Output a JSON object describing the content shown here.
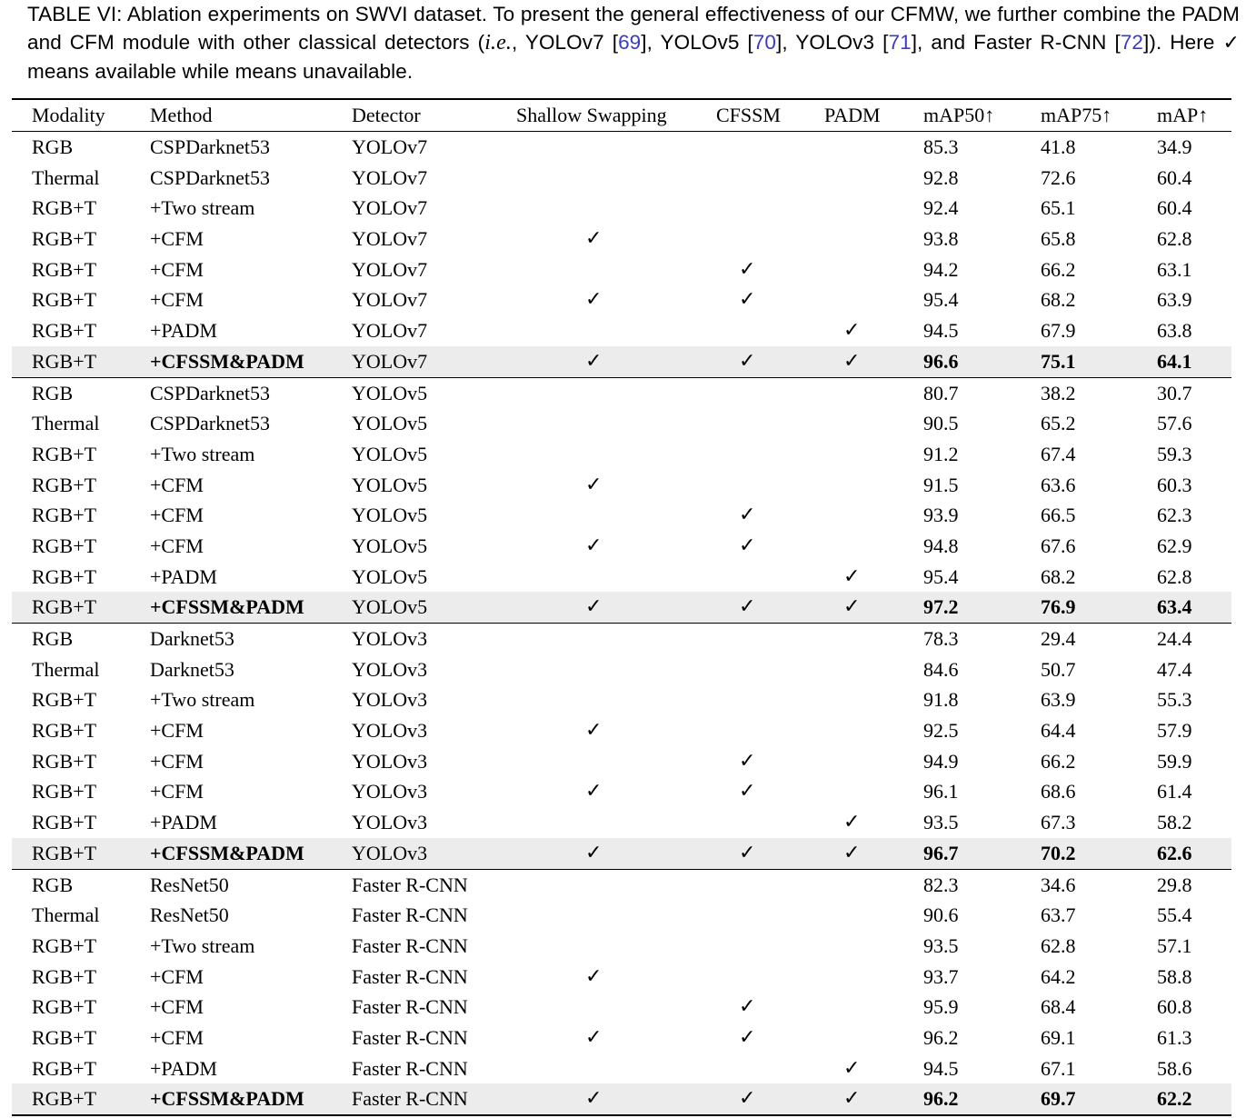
{
  "caption": {
    "p1": "TABLE VI: Ablation experiments on SWVI dataset. To present the general effectiveness of our CFMW, we further combine the PADM and CFM module with other classical detectors (",
    "ie": "i.e.",
    "p2": ", YOLOv7 [",
    "ref69": "69",
    "p3": "], YOLOv5 [",
    "ref70": "70",
    "p4": "], YOLOv3 [",
    "ref71": "71",
    "p5": "], and Faster R-CNN [",
    "ref72": "72",
    "p6": "]). Here ",
    "check": "✓",
    "p7": " means available while  means unavailable."
  },
  "table": {
    "headers": [
      "Modality",
      "Method",
      "Detector",
      "Shallow Swapping",
      "CFSSM",
      "PADM",
      "mAP50↑",
      "mAP75↑",
      "mAP↑"
    ],
    "check_glyph": "✓",
    "rows": [
      {
        "modality": "RGB",
        "method": "CSPDarknet53",
        "detector": "YOLOv7",
        "shallow": false,
        "cfssm": false,
        "padm": false,
        "map50": "85.3",
        "map75": "41.8",
        "map": "34.9"
      },
      {
        "modality": "Thermal",
        "method": "CSPDarknet53",
        "detector": "YOLOv7",
        "shallow": false,
        "cfssm": false,
        "padm": false,
        "map50": "92.8",
        "map75": "72.6",
        "map": "60.4"
      },
      {
        "modality": "RGB+T",
        "method": "+Two stream",
        "detector": "YOLOv7",
        "shallow": false,
        "cfssm": false,
        "padm": false,
        "map50": "92.4",
        "map75": "65.1",
        "map": "60.4"
      },
      {
        "modality": "RGB+T",
        "method": "+CFM",
        "detector": "YOLOv7",
        "shallow": true,
        "cfssm": false,
        "padm": false,
        "map50": "93.8",
        "map75": "65.8",
        "map": "62.8"
      },
      {
        "modality": "RGB+T",
        "method": "+CFM",
        "detector": "YOLOv7",
        "shallow": false,
        "cfssm": true,
        "padm": false,
        "map50": "94.2",
        "map75": "66.2",
        "map": "63.1"
      },
      {
        "modality": "RGB+T",
        "method": "+CFM",
        "detector": "YOLOv7",
        "shallow": true,
        "cfssm": true,
        "padm": false,
        "map50": "95.4",
        "map75": "68.2",
        "map": "63.9"
      },
      {
        "modality": "RGB+T",
        "method": "+PADM",
        "detector": "YOLOv7",
        "shallow": false,
        "cfssm": false,
        "padm": true,
        "map50": "94.5",
        "map75": "67.9",
        "map": "63.8"
      },
      {
        "modality": "RGB+T",
        "method": "+CFSSM&PADM",
        "detector": "YOLOv7",
        "shallow": true,
        "cfssm": true,
        "padm": true,
        "map50": "96.6",
        "map75": "75.1",
        "map": "64.1",
        "highlight": true,
        "group_end": true
      },
      {
        "modality": "RGB",
        "method": "CSPDarknet53",
        "detector": "YOLOv5",
        "shallow": false,
        "cfssm": false,
        "padm": false,
        "map50": "80.7",
        "map75": "38.2",
        "map": "30.7"
      },
      {
        "modality": "Thermal",
        "method": "CSPDarknet53",
        "detector": "YOLOv5",
        "shallow": false,
        "cfssm": false,
        "padm": false,
        "map50": "90.5",
        "map75": "65.2",
        "map": "57.6"
      },
      {
        "modality": "RGB+T",
        "method": "+Two stream",
        "detector": "YOLOv5",
        "shallow": false,
        "cfssm": false,
        "padm": false,
        "map50": "91.2",
        "map75": "67.4",
        "map": "59.3"
      },
      {
        "modality": "RGB+T",
        "method": "+CFM",
        "detector": "YOLOv5",
        "shallow": true,
        "cfssm": false,
        "padm": false,
        "map50": "91.5",
        "map75": "63.6",
        "map": "60.3"
      },
      {
        "modality": "RGB+T",
        "method": "+CFM",
        "detector": "YOLOv5",
        "shallow": false,
        "cfssm": true,
        "padm": false,
        "map50": "93.9",
        "map75": "66.5",
        "map": "62.3"
      },
      {
        "modality": "RGB+T",
        "method": "+CFM",
        "detector": "YOLOv5",
        "shallow": true,
        "cfssm": true,
        "padm": false,
        "map50": "94.8",
        "map75": "67.6",
        "map": "62.9"
      },
      {
        "modality": "RGB+T",
        "method": "+PADM",
        "detector": "YOLOv5",
        "shallow": false,
        "cfssm": false,
        "padm": true,
        "map50": "95.4",
        "map75": "68.2",
        "map": "62.8"
      },
      {
        "modality": "RGB+T",
        "method": "+CFSSM&PADM",
        "detector": "YOLOv5",
        "shallow": true,
        "cfssm": true,
        "padm": true,
        "map50": "97.2",
        "map75": "76.9",
        "map": "63.4",
        "highlight": true,
        "group_end": true
      },
      {
        "modality": "RGB",
        "method": "Darknet53",
        "detector": "YOLOv3",
        "shallow": false,
        "cfssm": false,
        "padm": false,
        "map50": "78.3",
        "map75": "29.4",
        "map": "24.4"
      },
      {
        "modality": "Thermal",
        "method": "Darknet53",
        "detector": "YOLOv3",
        "shallow": false,
        "cfssm": false,
        "padm": false,
        "map50": "84.6",
        "map75": "50.7",
        "map": "47.4"
      },
      {
        "modality": "RGB+T",
        "method": "+Two stream",
        "detector": "YOLOv3",
        "shallow": false,
        "cfssm": false,
        "padm": false,
        "map50": "91.8",
        "map75": "63.9",
        "map": "55.3"
      },
      {
        "modality": "RGB+T",
        "method": "+CFM",
        "detector": "YOLOv3",
        "shallow": true,
        "cfssm": false,
        "padm": false,
        "map50": "92.5",
        "map75": "64.4",
        "map": "57.9"
      },
      {
        "modality": "RGB+T",
        "method": "+CFM",
        "detector": "YOLOv3",
        "shallow": false,
        "cfssm": true,
        "padm": false,
        "map50": "94.9",
        "map75": "66.2",
        "map": "59.9"
      },
      {
        "modality": "RGB+T",
        "method": "+CFM",
        "detector": "YOLOv3",
        "shallow": true,
        "cfssm": true,
        "padm": false,
        "map50": "96.1",
        "map75": "68.6",
        "map": "61.4"
      },
      {
        "modality": "RGB+T",
        "method": "+PADM",
        "detector": "YOLOv3",
        "shallow": false,
        "cfssm": false,
        "padm": true,
        "map50": "93.5",
        "map75": "67.3",
        "map": "58.2"
      },
      {
        "modality": "RGB+T",
        "method": "+CFSSM&PADM",
        "detector": "YOLOv3",
        "shallow": true,
        "cfssm": true,
        "padm": true,
        "map50": "96.7",
        "map75": "70.2",
        "map": "62.6",
        "highlight": true,
        "group_end": true
      },
      {
        "modality": "RGB",
        "method": "ResNet50",
        "detector": "Faster R-CNN",
        "shallow": false,
        "cfssm": false,
        "padm": false,
        "map50": "82.3",
        "map75": "34.6",
        "map": "29.8"
      },
      {
        "modality": "Thermal",
        "method": "ResNet50",
        "detector": "Faster R-CNN",
        "shallow": false,
        "cfssm": false,
        "padm": false,
        "map50": "90.6",
        "map75": "63.7",
        "map": "55.4"
      },
      {
        "modality": "RGB+T",
        "method": "+Two stream",
        "detector": "Faster R-CNN",
        "shallow": false,
        "cfssm": false,
        "padm": false,
        "map50": "93.5",
        "map75": "62.8",
        "map": "57.1"
      },
      {
        "modality": "RGB+T",
        "method": "+CFM",
        "detector": "Faster R-CNN",
        "shallow": true,
        "cfssm": false,
        "padm": false,
        "map50": "93.7",
        "map75": "64.2",
        "map": "58.8"
      },
      {
        "modality": "RGB+T",
        "method": "+CFM",
        "detector": "Faster R-CNN",
        "shallow": false,
        "cfssm": true,
        "padm": false,
        "map50": "95.9",
        "map75": "68.4",
        "map": "60.8"
      },
      {
        "modality": "RGB+T",
        "method": "+CFM",
        "detector": "Faster R-CNN",
        "shallow": true,
        "cfssm": true,
        "padm": false,
        "map50": "96.2",
        "map75": "69.1",
        "map": "61.3"
      },
      {
        "modality": "RGB+T",
        "method": "+PADM",
        "detector": "Faster R-CNN",
        "shallow": false,
        "cfssm": false,
        "padm": true,
        "map50": "94.5",
        "map75": "67.1",
        "map": "58.6"
      },
      {
        "modality": "RGB+T",
        "method": "+CFSSM&PADM",
        "detector": "Faster R-CNN",
        "shallow": true,
        "cfssm": true,
        "padm": true,
        "map50": "96.2",
        "map75": "69.7",
        "map": "62.2",
        "highlight": true
      }
    ]
  }
}
